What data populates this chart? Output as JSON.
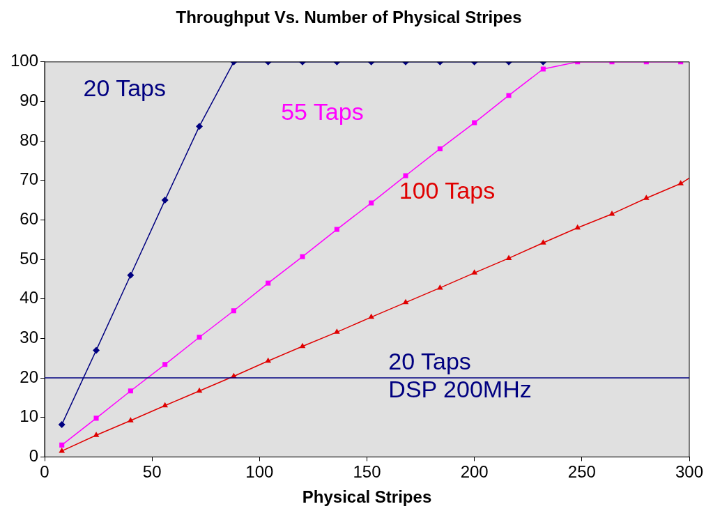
{
  "chart_data": {
    "type": "line",
    "title": "Throughput Vs. Number of Physical Stripes",
    "xlabel": "Physical Stripes",
    "xlim": [
      0,
      300
    ],
    "xticks": [
      0,
      50,
      100,
      150,
      200,
      250,
      300
    ],
    "ylim": [
      0,
      100
    ],
    "yticks": [
      0,
      10,
      20,
      30,
      40,
      50,
      60,
      70,
      80,
      90,
      100
    ],
    "grid": false,
    "series": [
      {
        "name": "20 Taps",
        "color": "#000080",
        "marker": "diamond",
        "x": [
          8,
          24,
          40,
          56,
          72,
          88,
          104,
          120,
          136,
          152,
          168,
          184,
          200,
          216,
          232
        ],
        "values": [
          8.2,
          27,
          46,
          65,
          83.7,
          100,
          100,
          100,
          100,
          100,
          100,
          100,
          100,
          100,
          100
        ]
      },
      {
        "name": "55 Taps",
        "color": "#ff00ff",
        "marker": "square",
        "x": [
          8,
          24,
          40,
          56,
          72,
          88,
          104,
          120,
          136,
          152,
          168,
          184,
          200,
          216,
          232,
          248,
          264,
          280,
          296
        ],
        "values": [
          3,
          9.8,
          16.7,
          23.4,
          30.3,
          37,
          44,
          50.7,
          57.6,
          64.3,
          71.2,
          78,
          84.6,
          91.5,
          98.2,
          100,
          100,
          100,
          100
        ]
      },
      {
        "name": "100 Taps",
        "color": "#e00000",
        "marker": "triangle",
        "x": [
          8,
          24,
          40,
          56,
          72,
          88,
          104,
          120,
          136,
          152,
          168,
          184,
          200,
          216,
          232,
          248,
          264,
          280,
          296,
          300
        ],
        "values": [
          1.5,
          5.5,
          9.2,
          13,
          16.7,
          20.4,
          24.3,
          28,
          31.6,
          35.4,
          39.1,
          42.8,
          46.6,
          50.3,
          54.2,
          58,
          61.5,
          65.5,
          69.2,
          70.6
        ]
      }
    ],
    "ref_lines": [
      {
        "axis": "y",
        "value": 20,
        "label": "20 Taps\nDSP 200MHz",
        "color": "#000080"
      }
    ]
  }
}
